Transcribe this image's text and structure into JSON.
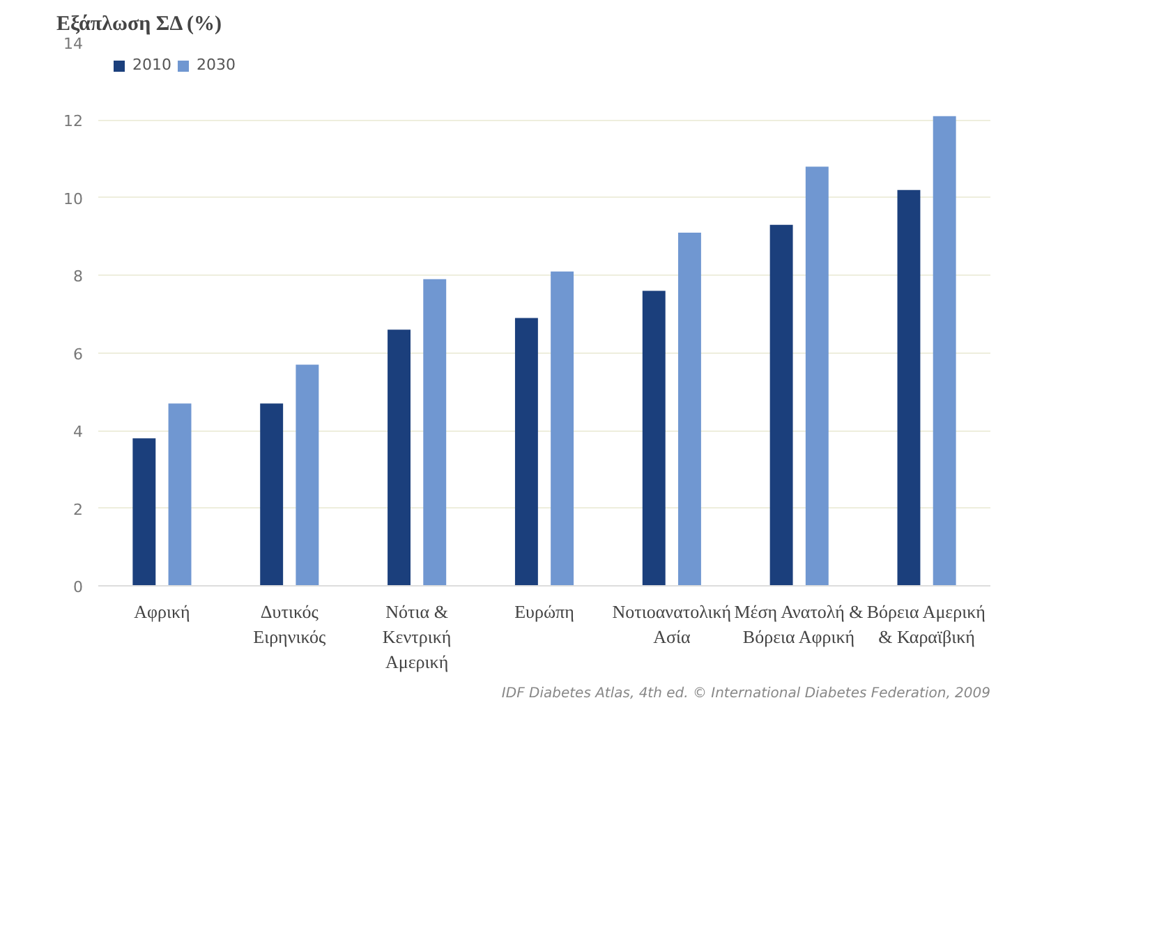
{
  "chart_data": {
    "type": "bar",
    "ylabel": "Εξάπλωση ΣΔ (%)",
    "categories": [
      "Αφρική",
      "Δυτικός Ειρηνικός",
      "Νότια & Κεντρική Αμερική",
      "Ευρώπη",
      "Νοτιοανατολική Ασία",
      "Μέση Ανατολή & Βόρεια Αφρική",
      "Βόρεια Αμερική & Καραϊβική"
    ],
    "series": [
      {
        "name": "2010",
        "color": "#1b3f7c",
        "values": [
          3.8,
          4.7,
          6.6,
          6.9,
          7.6,
          9.3,
          10.2
        ]
      },
      {
        "name": "2030",
        "color": "#7097d1",
        "values": [
          4.7,
          5.7,
          7.9,
          8.1,
          9.1,
          10.8,
          12.1
        ]
      }
    ],
    "ylim": [
      0,
      14
    ],
    "yticks": [
      0,
      2,
      4,
      6,
      8,
      10,
      12,
      14
    ],
    "grid": "y",
    "legend": "top left",
    "annotations": [
      "IDF Diabetes Atlas, 4th ed. © International Diabetes Federation, 2009"
    ]
  }
}
